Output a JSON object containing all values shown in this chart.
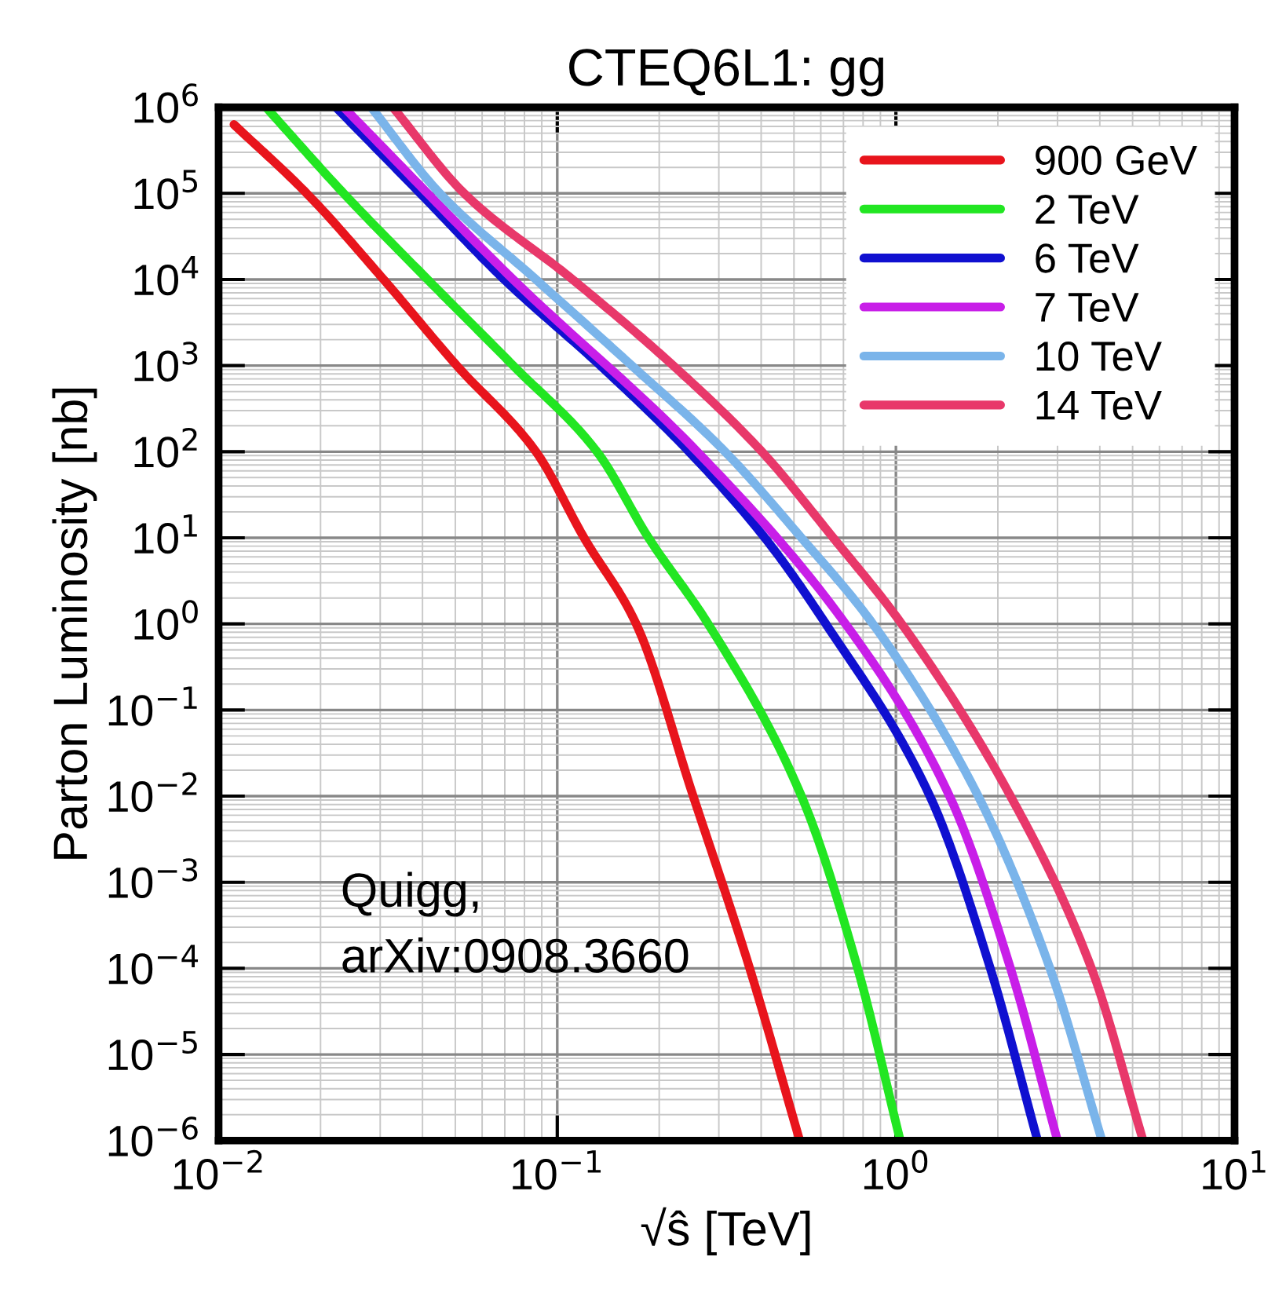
{
  "chart_data": {
    "type": "line",
    "title": "CTEQ6L1: gg",
    "xlabel": "√ŝ [TeV]",
    "ylabel": "Parton Luminosity [nb]",
    "annotations": [
      "Quigg,\narXiv:0908.3660"
    ],
    "log": "xy",
    "grid": true,
    "legend": "top right",
    "marker": "none",
    "line_style": "solid",
    "xlim": [
      0.01,
      10
    ],
    "ylim": [
      1e-06,
      1000000.0
    ],
    "xticks": [
      {
        "value": 0.01,
        "label": "10$^{−2}$"
      },
      {
        "value": 0.1,
        "label": "10$^{−1}$"
      },
      {
        "value": 1,
        "label": "10$^{0}$"
      },
      {
        "value": 10,
        "label": "10$^{1}$"
      }
    ],
    "yticks": [
      {
        "value": 1e-06,
        "label": "10$^{−6}$"
      },
      {
        "value": 1e-05,
        "label": "10$^{−5}$"
      },
      {
        "value": 0.0001,
        "label": "10$^{−4}$"
      },
      {
        "value": 0.001,
        "label": "10$^{−3}$"
      },
      {
        "value": 0.01,
        "label": "10$^{−2}$"
      },
      {
        "value": 0.1,
        "label": "10$^{−1}$"
      },
      {
        "value": 1,
        "label": "10$^{0}$"
      },
      {
        "value": 10,
        "label": "10$^{1}$"
      },
      {
        "value": 100,
        "label": "10$^{2}$"
      },
      {
        "value": 1000,
        "label": "10$^{3}$"
      },
      {
        "value": 10000,
        "label": "10$^{4}$"
      },
      {
        "value": 100000,
        "label": "10$^{5}$"
      },
      {
        "value": 1000000,
        "label": "10$^{6}$"
      }
    ],
    "series": [
      {
        "name": "900 GeV",
        "color": "#e8141c",
        "x": [
          0.0111,
          0.0182,
          0.0307,
          0.0505,
          0.0865,
          0.12,
          0.171,
          0.252,
          0.37,
          0.52
        ],
        "values": [
          630000,
          100000,
          10000,
          1000,
          100,
          10,
          1,
          0.01,
          0.0001,
          1e-06
        ]
      },
      {
        "name": "2 TeV",
        "color": "#22e622",
        "x": [
          0.0138,
          0.0234,
          0.0414,
          0.0741,
          0.131,
          0.186,
          0.279,
          0.526,
          0.771,
          1.03
        ],
        "values": [
          1000000,
          100000,
          10000,
          1000,
          100,
          10,
          1,
          0.01,
          0.0001,
          1e-06
        ]
      },
      {
        "name": "6 TeV",
        "color": "#1010d0",
        "x": [
          0.0222,
          0.0394,
          0.0697,
          0.134,
          0.245,
          0.41,
          0.621,
          1.26,
          1.9,
          2.62
        ],
        "values": [
          1000000,
          100000,
          10000,
          1000,
          100,
          10,
          1,
          0.01,
          0.0001,
          1e-06
        ]
      },
      {
        "name": "7 TeV",
        "color": "#c81ee8",
        "x": [
          0.0234,
          0.0741,
          0.259,
          0.71,
          1.44,
          2.18,
          3.0
        ],
        "values": [
          1000000,
          10000,
          100,
          1,
          0.01,
          0.0001,
          1e-06
        ]
      },
      {
        "name": "10 TeV",
        "color": "#7ab4ea",
        "x": [
          0.0282,
          0.045,
          0.0865,
          0.166,
          0.313,
          0.526,
          0.855,
          1.75,
          2.85,
          4.06
        ],
        "values": [
          1000000,
          100000,
          10000,
          1000,
          100,
          10,
          1,
          0.01,
          0.0001,
          1e-06
        ]
      },
      {
        "name": "14 TeV",
        "color": "#e8386a",
        "x": [
          0.0327,
          0.0531,
          0.111,
          0.22,
          0.402,
          0.653,
          1.04,
          2.18,
          3.78,
          5.37
        ],
        "values": [
          1000000,
          100000,
          10000,
          1000,
          100,
          10,
          1,
          0.01,
          0.0001,
          1e-06
        ]
      }
    ]
  }
}
